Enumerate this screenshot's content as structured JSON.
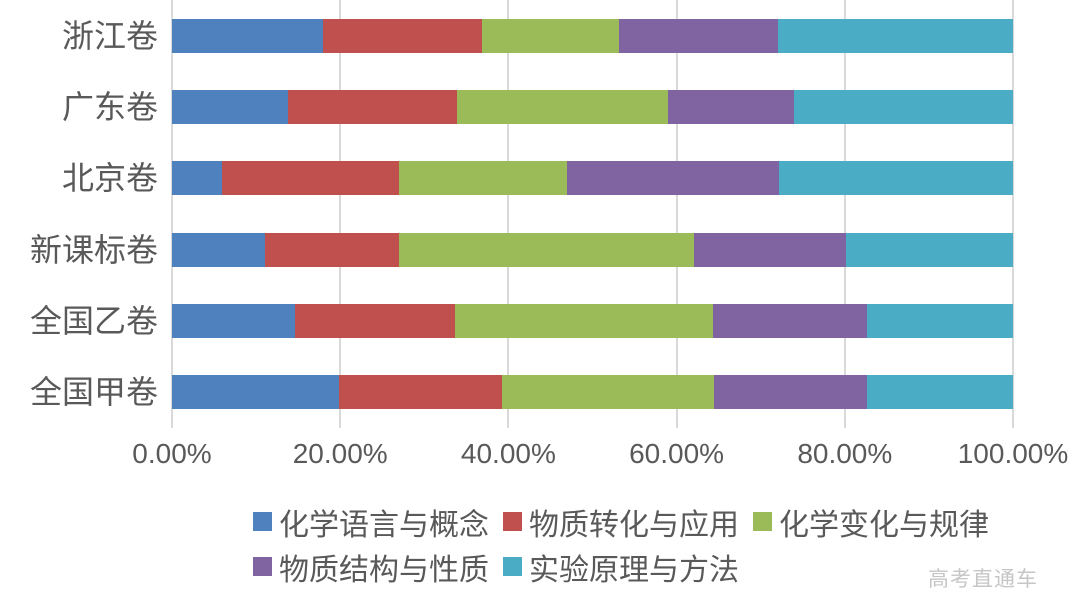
{
  "chart_data": {
    "type": "bar",
    "variant": "100%-stacked-horizontal",
    "categories": [
      "浙江卷",
      "广东卷",
      "北京卷",
      "新课标卷",
      "全国乙卷",
      "全国甲卷"
    ],
    "series": [
      {
        "name": "化学语言与概念",
        "color": "#4E81BD",
        "values": [
          17.9,
          13.8,
          6.0,
          11.0,
          14.6,
          19.9
        ]
      },
      {
        "name": "物质转化与应用",
        "color": "#C0504D",
        "values": [
          19.0,
          20.1,
          21.0,
          16.0,
          19.0,
          19.3
        ]
      },
      {
        "name": "化学变化与规律",
        "color": "#9BBB59",
        "values": [
          16.2,
          25.1,
          20.0,
          35.1,
          30.7,
          25.2
        ]
      },
      {
        "name": "物质结构与性质",
        "color": "#8064A2",
        "values": [
          19.0,
          15.0,
          25.2,
          18.1,
          18.3,
          18.3
        ]
      },
      {
        "name": "实验原理与方法",
        "color": "#4BACC6",
        "values": [
          27.9,
          26.0,
          27.8,
          19.8,
          17.4,
          17.3
        ]
      }
    ],
    "x_axis": {
      "min": 0,
      "max": 100,
      "tick_labels": [
        "0.00%",
        "20.00%",
        "40.00%",
        "60.00%",
        "80.00%",
        "100.00%"
      ]
    },
    "grid": "vertical-only",
    "grid_color": "#D9D9D9",
    "legend_position": "bottom",
    "legend_rows": [
      [
        "化学语言与概念",
        "物质转化与应用",
        "化学变化与规律"
      ],
      [
        "物质结构与性质",
        "实验原理与方法"
      ]
    ],
    "label_color": "#595959"
  },
  "watermark": "高考直通车"
}
